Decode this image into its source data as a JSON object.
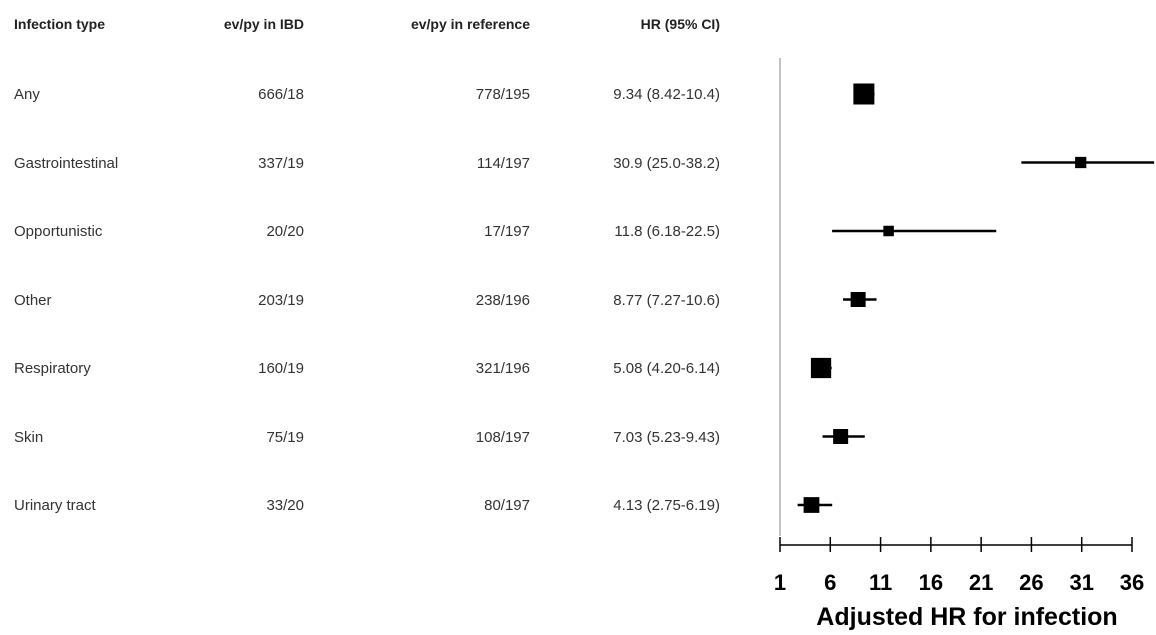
{
  "table": {
    "headers": [
      "Infection type",
      "ev/py in IBD",
      "ev/py in reference",
      "HR (95% CI)"
    ],
    "rows": [
      {
        "type": "Any",
        "ibd": "666/18",
        "ref": "778/195",
        "hr": "9.34 (8.42-10.4)"
      },
      {
        "type": "Gastrointestinal",
        "ibd": "337/19",
        "ref": "114/197",
        "hr": "30.9 (25.0-38.2)"
      },
      {
        "type": "Opportunistic",
        "ibd": "20/20",
        "ref": "17/197",
        "hr": "11.8 (6.18-22.5)"
      },
      {
        "type": "Other",
        "ibd": "203/19",
        "ref": "238/196",
        "hr": "8.77 (7.27-10.6)"
      },
      {
        "type": "Respiratory",
        "ibd": "160/19",
        "ref": "321/196",
        "hr": "5.08 (4.20-6.14)"
      },
      {
        "type": "Skin",
        "ibd": "75/19",
        "ref": "108/197",
        "hr": "7.03 (5.23-9.43)"
      },
      {
        "type": "Urinary tract",
        "ibd": "33/20",
        "ref": "80/197",
        "hr": "4.13 (2.75-6.19)"
      }
    ]
  },
  "chart_data": {
    "type": "scatter",
    "subtype": "forest-plot",
    "xlabel": "Adjusted HR for infection",
    "xticks": [
      1,
      6,
      11,
      16,
      21,
      26,
      31,
      36
    ],
    "xlim": [
      1,
      36
    ],
    "categories": [
      "Any",
      "Gastrointestinal",
      "Opportunistic",
      "Other",
      "Respiratory",
      "Skin",
      "Urinary tract"
    ],
    "estimates": [
      9.34,
      30.9,
      11.8,
      8.77,
      5.08,
      7.03,
      4.13
    ],
    "lower": [
      8.42,
      25.0,
      6.18,
      7.27,
      4.2,
      5.23,
      2.75
    ],
    "upper": [
      10.4,
      38.2,
      22.5,
      10.6,
      6.14,
      9.43,
      6.19
    ],
    "weights": [
      1.0,
      0.35,
      0.3,
      0.6,
      0.95,
      0.6,
      0.65
    ],
    "marker_color": "#000000",
    "grid": false
  }
}
